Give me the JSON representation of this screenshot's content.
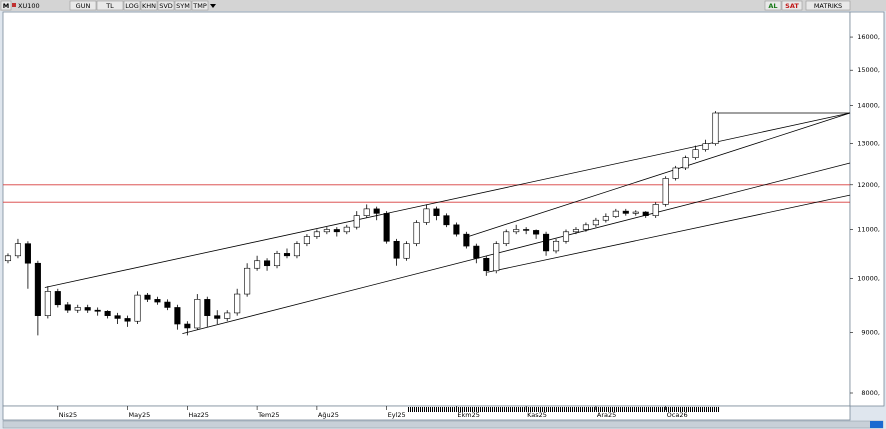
{
  "toolbar": {
    "logo": "M",
    "symbol": "XU100",
    "buttons": [
      "GUN",
      "TL",
      "LOG",
      "KHN",
      "SVD",
      "SYM",
      "TMP"
    ],
    "buy": "AL",
    "sell": "SAT",
    "brand": "MATRIKS"
  },
  "chart_data": {
    "type": "candlestick",
    "log_scale": true,
    "up_color": "#ffffff",
    "down_color": "#000000",
    "edge_color": "#000000",
    "open": [
      10350,
      10450,
      10700,
      10300,
      9300,
      9750,
      9500,
      9400,
      9450,
      9400,
      9380,
      9300,
      9250,
      9200,
      9680,
      9600,
      9550,
      9450,
      9150,
      9080,
      9600,
      9300,
      9250,
      9350,
      9700,
      10200,
      10350,
      10250,
      10500,
      10450,
      10700,
      10850,
      10950,
      11000,
      10950,
      11050,
      11300,
      11450,
      11350,
      10750,
      10400,
      10700,
      11150,
      11450,
      11300,
      11100,
      10900,
      10650,
      10400,
      10150,
      10700,
      10950,
      11000,
      10980,
      10900,
      10550,
      10750,
      10950,
      11000,
      11100,
      11200,
      11280,
      11400,
      11350,
      11380,
      11300,
      11550,
      12150,
      12400,
      12650,
      12850,
      13000
    ],
    "high": [
      10500,
      10800,
      10750,
      10350,
      9850,
      9800,
      9550,
      9500,
      9500,
      9450,
      9400,
      9350,
      9300,
      9750,
      9720,
      9650,
      9600,
      9500,
      9200,
      9700,
      9650,
      9400,
      9400,
      9800,
      10300,
      10450,
      10400,
      10550,
      10600,
      10750,
      10900,
      11000,
      11050,
      11050,
      11100,
      11400,
      11550,
      11500,
      11400,
      10800,
      10750,
      11200,
      11550,
      11500,
      11350,
      11150,
      10950,
      10700,
      10450,
      10750,
      11000,
      11100,
      11050,
      11000,
      10950,
      10800,
      11000,
      11050,
      11150,
      11250,
      11350,
      11450,
      11450,
      11420,
      11400,
      11600,
      12200,
      12450,
      12700,
      12950,
      13100,
      13850
    ],
    "low": [
      10300,
      10400,
      9800,
      8950,
      9250,
      9450,
      9350,
      9350,
      9350,
      9300,
      9250,
      9150,
      9100,
      9150,
      9550,
      9500,
      9400,
      9050,
      8950,
      9050,
      9100,
      9150,
      9200,
      9300,
      9650,
      10150,
      10150,
      10200,
      10400,
      10400,
      10650,
      10800,
      10900,
      10850,
      10900,
      11000,
      11250,
      11200,
      10700,
      10250,
      10350,
      10650,
      11100,
      11200,
      11050,
      10850,
      10600,
      10300,
      10050,
      10100,
      10650,
      10900,
      10900,
      10800,
      10450,
      10500,
      10700,
      10900,
      10950,
      11050,
      11150,
      11250,
      11300,
      11300,
      11250,
      11250,
      11500,
      12100,
      12350,
      12600,
      12800,
      12950
    ],
    "close": [
      10450,
      10700,
      10300,
      9300,
      9750,
      9500,
      9400,
      9450,
      9400,
      9380,
      9300,
      9250,
      9200,
      9680,
      9600,
      9550,
      9450,
      9150,
      9080,
      9600,
      9300,
      9250,
      9350,
      9700,
      10200,
      10350,
      10250,
      10500,
      10450,
      10700,
      10850,
      10950,
      11000,
      10950,
      11050,
      11300,
      11450,
      11350,
      10750,
      10400,
      10700,
      11150,
      11450,
      11300,
      11100,
      10900,
      10650,
      10400,
      10150,
      10700,
      10950,
      11000,
      10980,
      10900,
      10550,
      10750,
      10950,
      11000,
      11100,
      11200,
      11280,
      11400,
      11350,
      11380,
      11300,
      11550,
      12150,
      12400,
      12650,
      12850,
      13000,
      13800
    ],
    "xlim": [
      -0.5,
      84.5
    ],
    "xticks": [
      {
        "value": 5,
        "label": "Nis25"
      },
      {
        "value": 12,
        "label": "May25"
      },
      {
        "value": 18,
        "label": "Haz25"
      },
      {
        "value": 25,
        "label": "Tem25"
      },
      {
        "value": 31,
        "label": "Ağu25"
      },
      {
        "value": 38,
        "label": "Eyl25"
      },
      {
        "value": 45,
        "label": "Ekm25"
      },
      {
        "value": 52,
        "label": "Kas25"
      },
      {
        "value": 59,
        "label": "Ara25"
      },
      {
        "value": 66,
        "label": "Oca26"
      }
    ],
    "ylim": [
      7800,
      16800
    ],
    "yticks": [
      {
        "value": 8000,
        "label": "8000,"
      },
      {
        "value": 9000,
        "label": "9000,"
      },
      {
        "value": 10000,
        "label": "10000,"
      },
      {
        "value": 11000,
        "label": "11000,"
      },
      {
        "value": 12000,
        "label": "12000,"
      },
      {
        "value": 13000,
        "label": "13000,"
      },
      {
        "value": 14000,
        "label": "14000,"
      },
      {
        "value": 15000,
        "label": "15000,"
      },
      {
        "value": 16000,
        "label": "16000,"
      }
    ],
    "trendlines": [
      {
        "x": [
          3.7,
          84.5
        ],
        "y": [
          9825,
          13800
        ],
        "color": "#000000"
      },
      {
        "x": [
          17.5,
          84.5
        ],
        "y": [
          8980,
          12520
        ],
        "color": "#000000"
      },
      {
        "x": [
          45.9,
          84.5
        ],
        "y": [
          10830,
          13800
        ],
        "color": "#000000"
      },
      {
        "x": [
          48.1,
          84.5
        ],
        "y": [
          10120,
          11760
        ],
        "color": "#000000"
      },
      {
        "x": [
          71.2,
          84.5
        ],
        "y": [
          13800,
          13800
        ],
        "color": "#000000"
      }
    ],
    "hlines": [
      {
        "value": 12000,
        "color": "#d83a3a"
      },
      {
        "value": 11600,
        "color": "#d83a3a"
      }
    ]
  }
}
